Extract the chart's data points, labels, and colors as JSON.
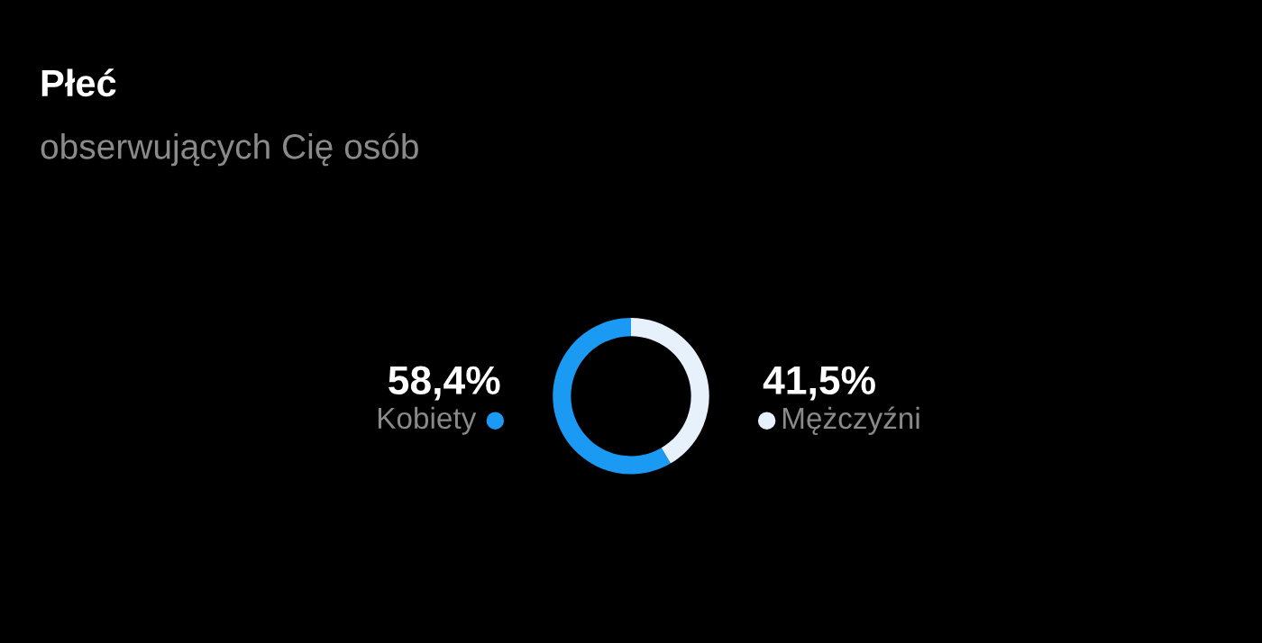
{
  "chart_data": {
    "type": "donut",
    "title": "Płeć",
    "subtitle": "obserwujących Cię osób",
    "categories": [
      "Kobiety",
      "Mężczyźni"
    ],
    "values": [
      58.4,
      41.5
    ],
    "value_labels": [
      "58,4%",
      "41,5%"
    ],
    "colors": [
      "#1a9af2",
      "#e6f1fc"
    ]
  }
}
